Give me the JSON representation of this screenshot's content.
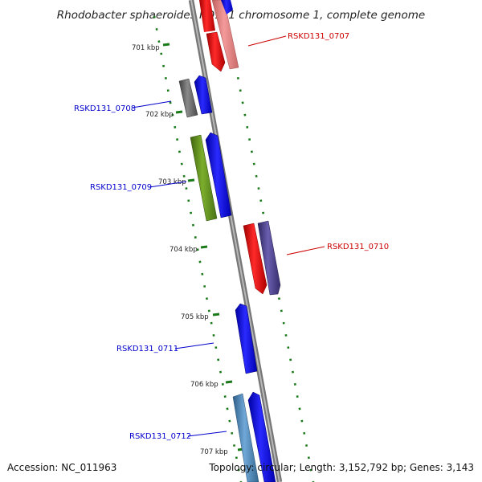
{
  "title": "Rhodobacter sphaeroides KD131 chromosome 1, complete genome",
  "accession": "Accession: NC_011963",
  "summary": "Topology: circular; Length: 3,152,792 bp; Genes: 3,143",
  "kbp_labels": [
    "701 kbp",
    "702 kbp",
    "703 kbp",
    "704 kbp",
    "705 kbp",
    "706 kbp",
    "707 kbp"
  ],
  "gene_labels": [
    {
      "text": "RSKD131_0707",
      "color": "#cc0000"
    },
    {
      "text": "RSKD131_0708",
      "color": "#0000cc"
    },
    {
      "text": "RSKD131_0709",
      "color": "#0000cc"
    },
    {
      "text": "RSKD131_0710",
      "color": "#cc0000"
    },
    {
      "text": "RSKD131_0711",
      "color": "#0000cc"
    },
    {
      "text": "RSKD131_0712",
      "color": "#0000cc"
    }
  ],
  "colors": {
    "backbone": "#8a8a8a",
    "gc_dots": "#1a7a1a",
    "forward_gene": "#0000ff",
    "reverse_gene": "#ff0000",
    "reverse_gene_light": "#f08080",
    "gray_gene": "#606060",
    "olive_gene": "#5c8a1c",
    "purple_gene": "#4a3f8a",
    "steel_gene": "#4682b4"
  }
}
